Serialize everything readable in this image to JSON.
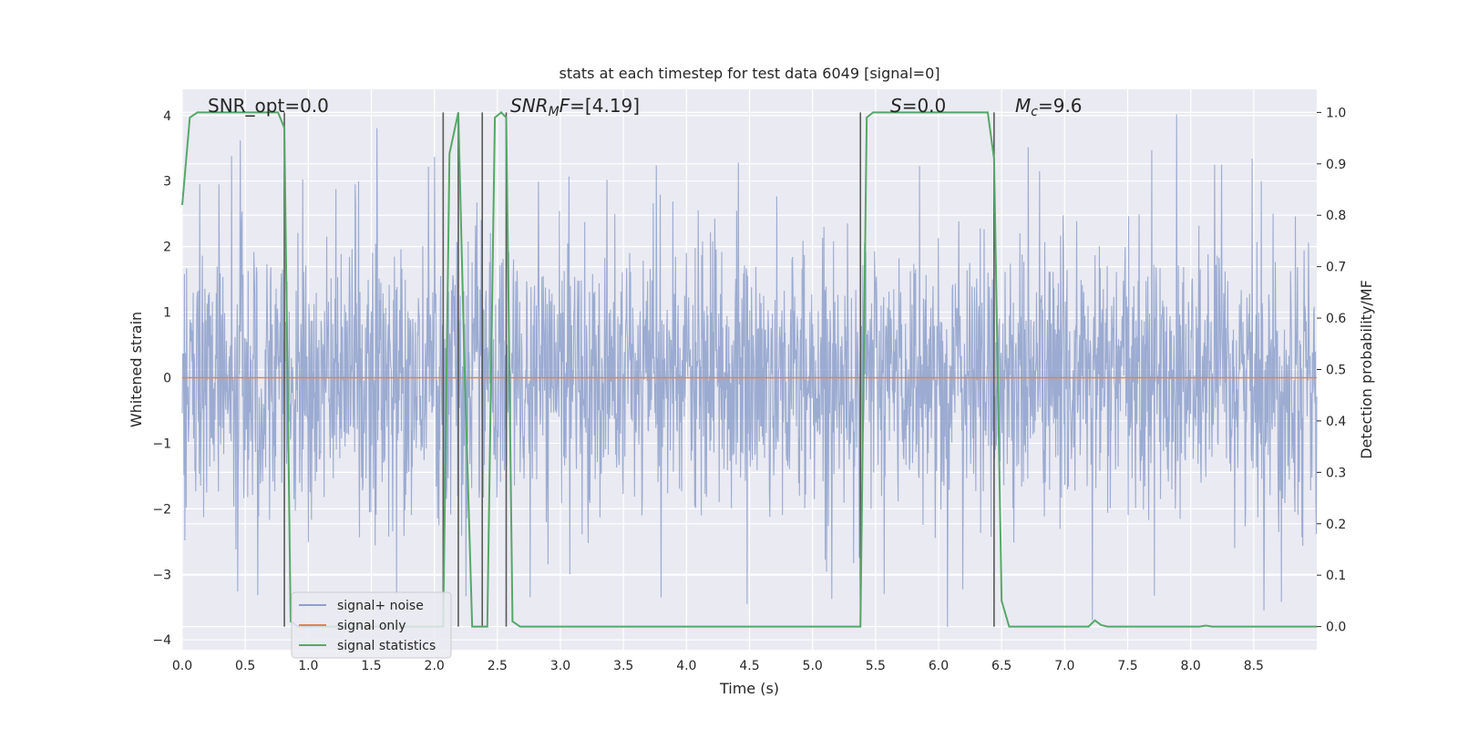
{
  "chart_data": {
    "type": "line",
    "title": "stats at each timestep for test data 6049 [signal=0]",
    "xlabel": "Time (s)",
    "ylabel": "Whitened strain",
    "y2label": "Detection probability/MF",
    "xlim": [
      0.0,
      9.0
    ],
    "ylim": [
      -4.15,
      4.4
    ],
    "y2lim": [
      -0.045,
      1.045
    ],
    "x_ticks": [
      "0.0",
      "0.5",
      "1.0",
      "1.5",
      "2.0",
      "2.5",
      "3.0",
      "3.5",
      "4.0",
      "4.5",
      "5.0",
      "5.5",
      "6.0",
      "6.5",
      "7.0",
      "7.5",
      "8.0",
      "8.5"
    ],
    "y_ticks": [
      "4",
      "3",
      "2",
      "1",
      "0",
      "−1",
      "−2",
      "−3",
      "−4"
    ],
    "y2_ticks": [
      "1.0",
      "0.9",
      "0.8",
      "0.7",
      "0.6",
      "0.5",
      "0.4",
      "0.3",
      "0.2",
      "0.1",
      "0.0"
    ],
    "grid": true,
    "legend_position": "lower-left",
    "annotations": {
      "snr_opt": "SNR_opt=0.0",
      "snr_mf": "SNR",
      "snr_mf_sub": "M",
      "snr_mf_f": "F",
      "snr_mf_value": "=[4.19]",
      "s_sym": "S",
      "s_value": "=0.0",
      "mc_sym": "M",
      "mc_sub": "c",
      "mc_value": "=9.6"
    },
    "vlines": [
      0.81,
      2.07,
      2.19,
      2.38,
      2.57,
      5.38,
      6.44
    ],
    "series": [
      {
        "name": "signal+ noise",
        "color": "#8da0cb",
        "axis": "left",
        "description_values": "whitened noise ~N(0,1), envelope approx -3.8 to 4.0",
        "peak_values": [
          [
            0.46,
            3.62
          ],
          [
            0.14,
            2.95
          ],
          [
            0.29,
            2.95
          ],
          [
            1.37,
            2.95
          ],
          [
            2.0,
            3.37
          ],
          [
            3.37,
            3.02
          ],
          [
            3.76,
            3.24
          ],
          [
            4.41,
            3.28
          ],
          [
            5.85,
            3.23
          ],
          [
            6.8,
            3.15
          ],
          [
            7.69,
            3.47
          ],
          [
            7.89,
            4.02
          ],
          [
            8.19,
            3.25
          ],
          [
            8.56,
            3.0
          ],
          [
            8.83,
            2.46
          ],
          [
            0.6,
            -3.32
          ],
          [
            1.7,
            -3.3
          ],
          [
            2.76,
            -3.35
          ],
          [
            3.8,
            -3.35
          ],
          [
            4.48,
            -3.45
          ],
          [
            5.57,
            -3.3
          ],
          [
            6.07,
            -3.8
          ],
          [
            7.22,
            -3.7
          ],
          [
            8.58,
            -3.55
          ],
          [
            8.72,
            -3.42
          ]
        ]
      },
      {
        "name": "signal only",
        "color": "#dd8452",
        "axis": "left",
        "x": [
          0.0,
          9.0
        ],
        "y": [
          0.0,
          0.0
        ]
      },
      {
        "name": "signal statistics",
        "color": "#55a868",
        "axis": "right",
        "x": [
          0.0,
          0.06,
          0.12,
          0.5,
          0.7,
          0.76,
          0.81,
          0.86,
          0.92,
          1.0,
          2.02,
          2.07,
          2.12,
          2.19,
          2.24,
          2.3,
          2.36,
          2.42,
          2.48,
          2.53,
          2.57,
          2.62,
          2.68,
          2.74,
          5.32,
          5.38,
          5.43,
          5.48,
          6.0,
          6.33,
          6.39,
          6.44,
          6.5,
          6.56,
          7.19,
          7.24,
          7.29,
          7.34,
          7.4,
          8.07,
          8.12,
          8.17,
          9.0
        ],
        "y": [
          0.82,
          0.99,
          1.0,
          1.0,
          1.0,
          1.0,
          0.97,
          0.01,
          0.0,
          0.0,
          0.0,
          0.0,
          0.92,
          1.0,
          0.5,
          0.0,
          0.0,
          0.0,
          0.99,
          1.0,
          0.99,
          0.01,
          0.0,
          0.0,
          0.0,
          0.0,
          0.99,
          1.0,
          1.0,
          1.0,
          1.0,
          0.91,
          0.05,
          0.0,
          0.0,
          0.012,
          0.003,
          0.0,
          0.0,
          0.0,
          0.002,
          0.0,
          0.0
        ]
      }
    ]
  },
  "legend": {
    "items": [
      {
        "label": "signal+ noise",
        "color": "#8da0cb"
      },
      {
        "label": "signal only",
        "color": "#dd8452"
      },
      {
        "label": "signal statistics",
        "color": "#55a868"
      }
    ]
  },
  "colors": {
    "plot_background": "#eaeaf2",
    "grid": "#ffffff",
    "vline": "#595959",
    "text": "#262626"
  }
}
